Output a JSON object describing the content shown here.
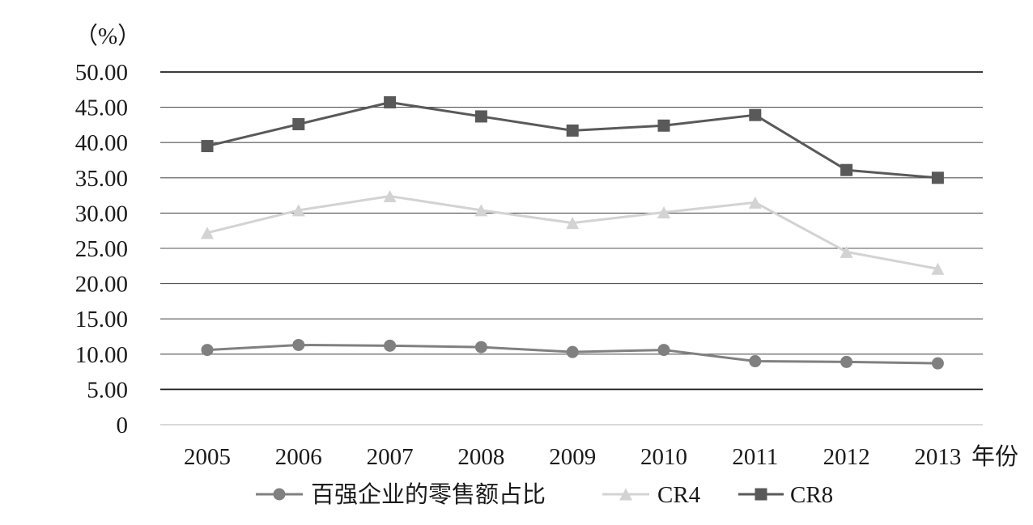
{
  "chart_data": {
    "type": "line",
    "y_unit_label": "（%）",
    "x_axis_suffix": "年份",
    "categories": [
      "2005",
      "2006",
      "2007",
      "2008",
      "2009",
      "2010",
      "2011",
      "2012",
      "2013"
    ],
    "y_ticks": [
      "50.00",
      "45.00",
      "40.00",
      "35.00",
      "30.00",
      "25.00",
      "20.00",
      "15.00",
      "10.00",
      "5.00",
      "0"
    ],
    "ylim": [
      0,
      50
    ],
    "grid": true,
    "legend_position": "bottom",
    "series": [
      {
        "name": "百强企业的零售额占比",
        "marker": "circle",
        "color": "#808080",
        "values": [
          10.6,
          11.3,
          11.2,
          11.0,
          10.3,
          10.6,
          9.0,
          8.9,
          8.7
        ]
      },
      {
        "name": "CR4",
        "marker": "triangle",
        "color": "#d3d3d3",
        "values": [
          27.2,
          30.4,
          32.4,
          30.4,
          28.6,
          30.1,
          31.5,
          24.5,
          22.1
        ]
      },
      {
        "name": "CR8",
        "marker": "square",
        "color": "#595959",
        "values": [
          39.5,
          42.6,
          45.7,
          43.7,
          41.7,
          42.4,
          43.9,
          36.1,
          35.0
        ]
      }
    ]
  }
}
